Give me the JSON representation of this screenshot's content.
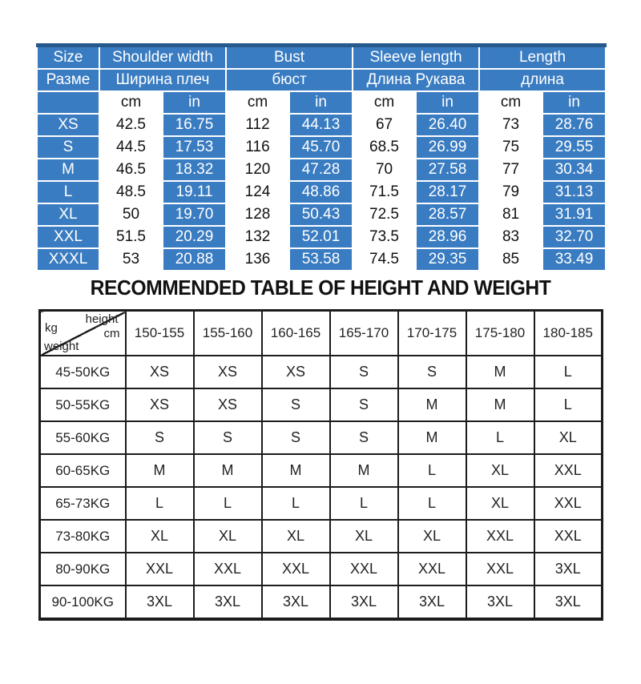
{
  "title": "RECOMMENDED TABLE OF HEIGHT AND WEIGHT",
  "size_table": {
    "header_en": [
      "Size",
      "Shoulder width",
      "Bust",
      "Sleeve length",
      "Length"
    ],
    "header_ru": [
      "Разме",
      "Ширина плеч",
      "бюст",
      "Длина Рукава",
      "длина"
    ],
    "unit_cm": "cm",
    "unit_in": "in",
    "rows": [
      {
        "size": "XS",
        "values": [
          "42.5",
          "16.75",
          "112",
          "44.13",
          "67",
          "26.40",
          "73",
          "28.76"
        ]
      },
      {
        "size": "S",
        "values": [
          "44.5",
          "17.53",
          "116",
          "45.70",
          "68.5",
          "26.99",
          "75",
          "29.55"
        ]
      },
      {
        "size": "M",
        "values": [
          "46.5",
          "18.32",
          "120",
          "47.28",
          "70",
          "27.58",
          "77",
          "30.34"
        ]
      },
      {
        "size": "L",
        "values": [
          "48.5",
          "19.11",
          "124",
          "48.86",
          "71.5",
          "28.17",
          "79",
          "31.13"
        ]
      },
      {
        "size": "XL",
        "values": [
          "50",
          "19.70",
          "128",
          "50.43",
          "72.5",
          "28.57",
          "81",
          "31.91"
        ]
      },
      {
        "size": "XXL",
        "values": [
          "51.5",
          "20.29",
          "132",
          "52.01",
          "73.5",
          "28.96",
          "83",
          "32.70"
        ]
      },
      {
        "size": "XXXL",
        "values": [
          "53",
          "20.88",
          "136",
          "53.58",
          "74.5",
          "29.35",
          "85",
          "33.49"
        ]
      }
    ]
  },
  "height_weight_table": {
    "corner": {
      "height": "height",
      "cm": "cm",
      "kg": "kg",
      "weight": "weight"
    },
    "height_columns": [
      "150-155",
      "155-160",
      "160-165",
      "165-170",
      "170-175",
      "175-180",
      "180-185"
    ],
    "rows": [
      {
        "weight": "45-50KG",
        "sizes": [
          "XS",
          "XS",
          "XS",
          "S",
          "S",
          "M",
          "L"
        ]
      },
      {
        "weight": "50-55KG",
        "sizes": [
          "XS",
          "XS",
          "S",
          "S",
          "M",
          "M",
          "L"
        ]
      },
      {
        "weight": "55-60KG",
        "sizes": [
          "S",
          "S",
          "S",
          "S",
          "M",
          "L",
          "XL"
        ]
      },
      {
        "weight": "60-65KG",
        "sizes": [
          "M",
          "M",
          "M",
          "M",
          "L",
          "XL",
          "XXL"
        ]
      },
      {
        "weight": "65-73KG",
        "sizes": [
          "L",
          "L",
          "L",
          "L",
          "L",
          "XL",
          "XXL"
        ]
      },
      {
        "weight": "73-80KG",
        "sizes": [
          "XL",
          "XL",
          "XL",
          "XL",
          "XL",
          "XXL",
          "XXL"
        ]
      },
      {
        "weight": "80-90KG",
        "sizes": [
          "XXL",
          "XXL",
          "XXL",
          "XXL",
          "XXL",
          "XXL",
          "3XL"
        ]
      },
      {
        "weight": "90-100KG",
        "sizes": [
          "3XL",
          "3XL",
          "3XL",
          "3XL",
          "3XL",
          "3XL",
          "3XL"
        ]
      }
    ]
  },
  "colors": {
    "header_blue": "#3a7cc1",
    "dark_blue_border": "#27598c",
    "table_line": "#1c1c1c",
    "text_dark": "#1f1f1f"
  }
}
